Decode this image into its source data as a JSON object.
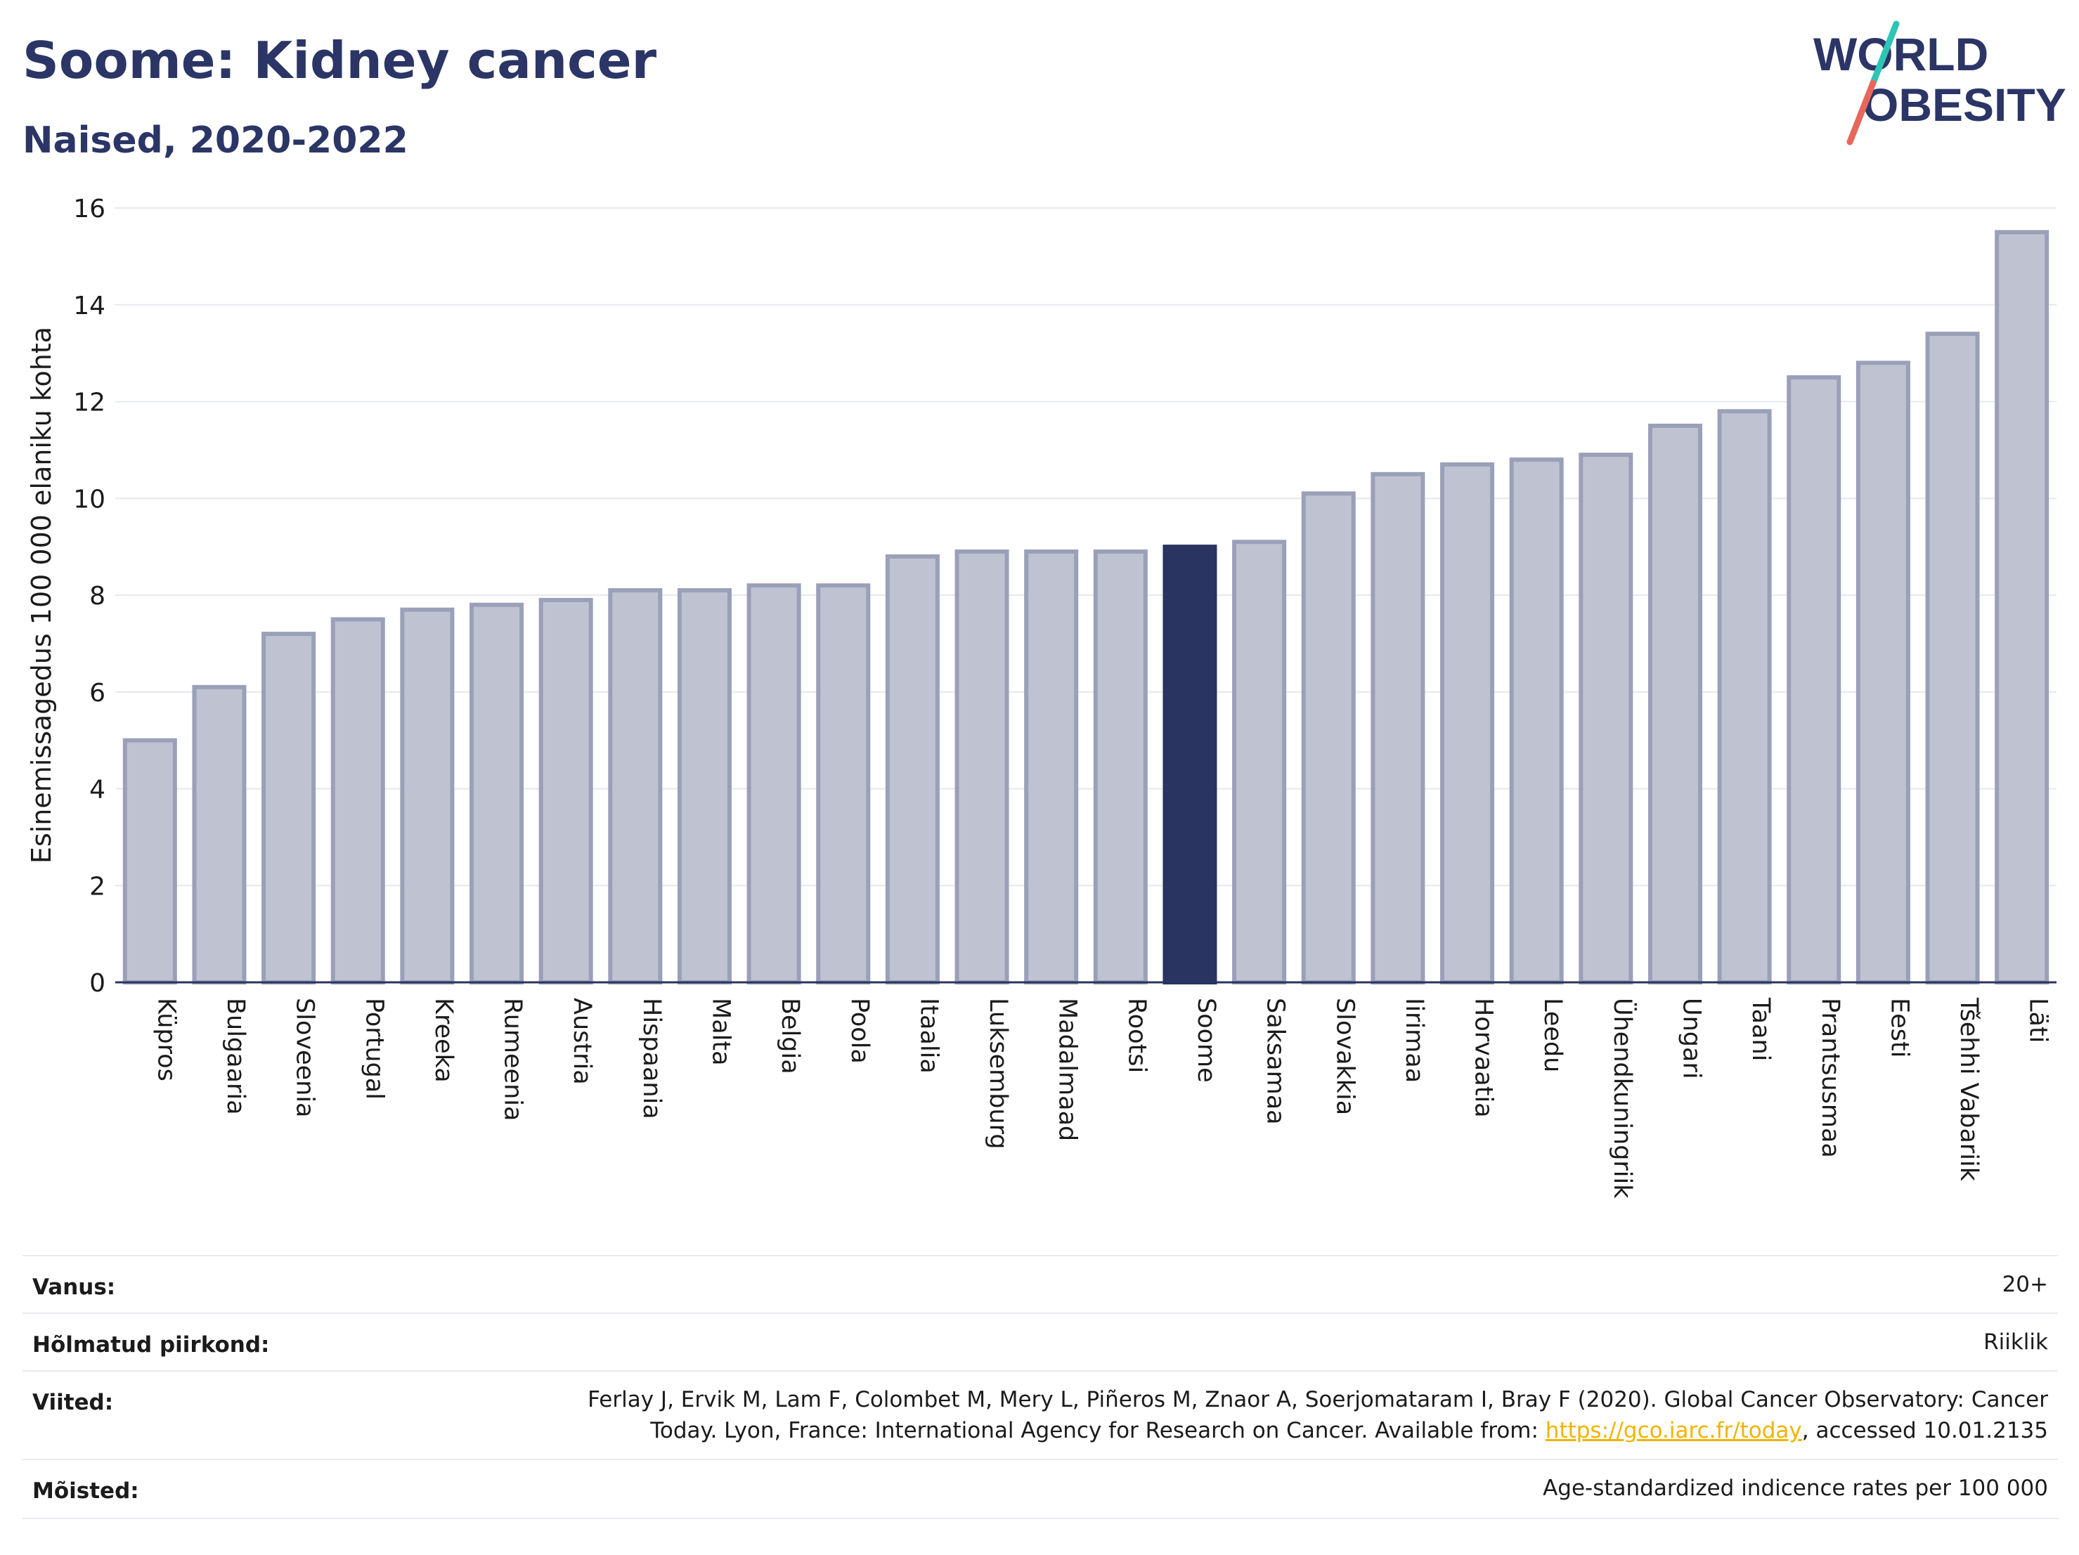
{
  "header": {
    "title": "Soome: Kidney cancer",
    "subtitle": "Naised, 2020-2022"
  },
  "logo": {
    "line1": "WORLD",
    "line2": "OBESITY",
    "colors": {
      "text": "#2b3566",
      "slash_top": "#2ec4b6",
      "slash_bottom": "#e8675b"
    }
  },
  "colors": {
    "bar": "#bfc2d0",
    "bar_border": "#9aa0b8",
    "highlight": "#2a3461",
    "grid": "#e6e8ee",
    "axis": "#2a3461"
  },
  "chart_data": {
    "type": "bar",
    "title": "",
    "ylabel": "Esinemissagedus 100 000 elaniku kohta",
    "xlabel": "",
    "ylim": [
      0,
      16
    ],
    "yticks": [
      0,
      2,
      4,
      6,
      8,
      10,
      12,
      14,
      16
    ],
    "grid": true,
    "highlight": "Soome",
    "categories": [
      "Küpros",
      "Bulgaaria",
      "Sloveenia",
      "Portugal",
      "Kreeka",
      "Rumeenia",
      "Austria",
      "Hispaania",
      "Malta",
      "Belgia",
      "Poola",
      "Itaalia",
      "Luksemburg",
      "Madalmaad",
      "Rootsi",
      "Soome",
      "Saksamaa",
      "Slovakkia",
      "Iirimaa",
      "Horvaatia",
      "Leedu",
      "Ühendkuningriik",
      "Ungari",
      "Taani",
      "Prantsusmaa",
      "Eesti",
      "Tšehhi Vabariik",
      "Läti"
    ],
    "values": [
      5.0,
      6.1,
      7.2,
      7.5,
      7.7,
      7.8,
      7.9,
      8.1,
      8.1,
      8.2,
      8.2,
      8.8,
      8.9,
      8.9,
      8.9,
      9.0,
      9.1,
      10.1,
      10.5,
      10.7,
      10.8,
      10.9,
      11.5,
      11.8,
      12.5,
      12.8,
      13.4,
      15.5
    ]
  },
  "meta": {
    "rows": [
      {
        "label": "Vanus:",
        "value": "20+"
      },
      {
        "label": "Hõlmatud piirkond:",
        "value": "Riiklik"
      },
      {
        "label": "Viited:",
        "value_line1": "Ferlay J, Ervik M, Lam F, Colombet M, Mery L, Piñeros M, Znaor A, Soerjomataram I, Bray F (2020). Global Cancer Observatory: Cancer",
        "value_line2_pre": "Today. Lyon, France: International Agency for Research on Cancer. Available from: ",
        "link": "https://gco.iarc.fr/today",
        "value_line2_post": ", accessed 10.01.2135"
      },
      {
        "label": "Mõisted:",
        "value": "Age-standardized indicence rates per 100 000"
      }
    ]
  }
}
